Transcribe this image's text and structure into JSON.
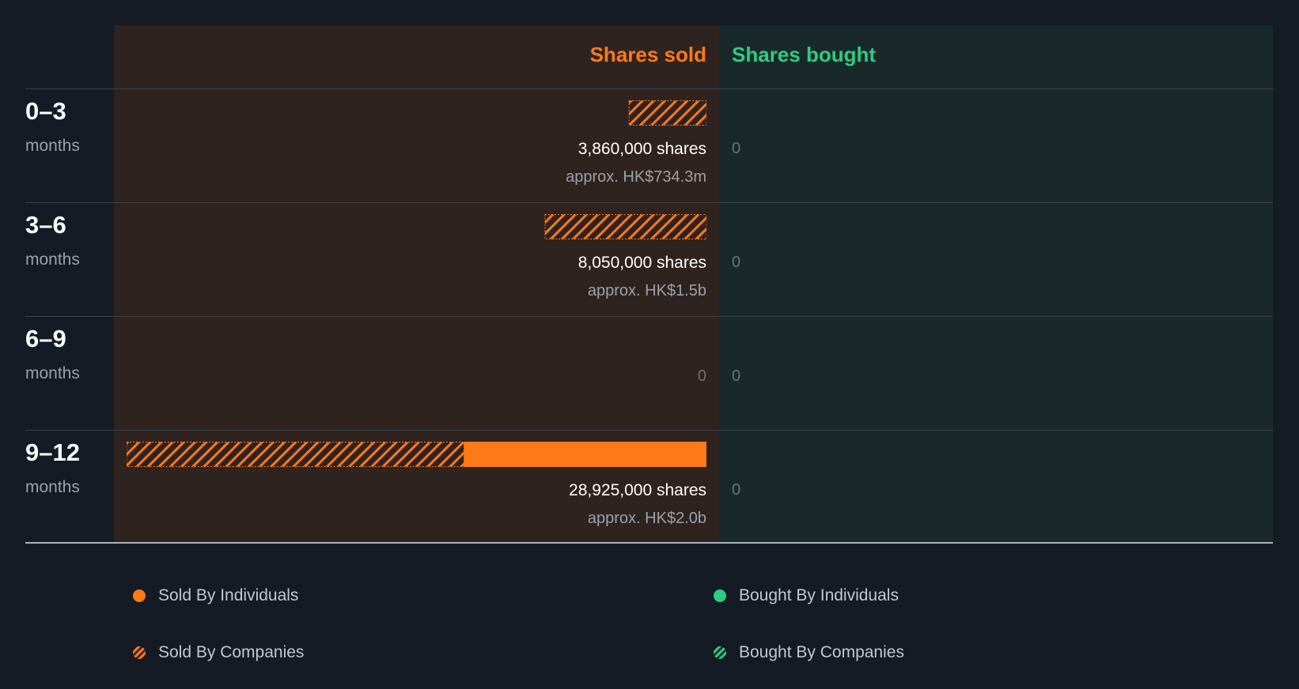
{
  "colors": {
    "sold": "#ff7a17",
    "bought": "#2ecc82",
    "sold_panel": "#2f2320",
    "bought_panel": "#19292a",
    "background": "#151b24"
  },
  "header": {
    "sold_label": "Shares sold",
    "bought_label": "Shares bought"
  },
  "chart_data": {
    "type": "bar",
    "orientation": "horizontal",
    "categories": [
      "0–3",
      "3–6",
      "6–9",
      "9–12"
    ],
    "category_unit": "months",
    "series": [
      {
        "name": "Sold By Individuals",
        "values": [
          0,
          0,
          0,
          12100000
        ]
      },
      {
        "name": "Sold By Companies",
        "values": [
          3860000,
          8050000,
          0,
          16825000
        ]
      },
      {
        "name": "Bought By Individuals",
        "values": [
          0,
          0,
          0,
          0
        ]
      },
      {
        "name": "Bought By Companies",
        "values": [
          0,
          0,
          0,
          0
        ]
      }
    ],
    "sold_totals": [
      3860000,
      8050000,
      0,
      28925000
    ],
    "max_value": 28925000,
    "grid": false,
    "legend_position": "bottom"
  },
  "rows": [
    {
      "period": "0–3",
      "unit": "months",
      "shares": "3,860,000 shares",
      "approx": "approx. HK$734.3m",
      "sold_zero": "",
      "bought_zero": "0"
    },
    {
      "period": "3–6",
      "unit": "months",
      "shares": "8,050,000 shares",
      "approx": "approx. HK$1.5b",
      "sold_zero": "",
      "bought_zero": "0"
    },
    {
      "period": "6–9",
      "unit": "months",
      "shares": "",
      "approx": "",
      "sold_zero": "0",
      "bought_zero": "0"
    },
    {
      "period": "9–12",
      "unit": "months",
      "shares": "28,925,000 shares",
      "approx": "approx. HK$2.0b",
      "sold_zero": "",
      "bought_zero": "0"
    }
  ],
  "legend": {
    "sold_individuals": "Sold By Individuals",
    "sold_companies": "Sold By Companies",
    "bought_individuals": "Bought By Individuals",
    "bought_companies": "Bought By Companies"
  }
}
